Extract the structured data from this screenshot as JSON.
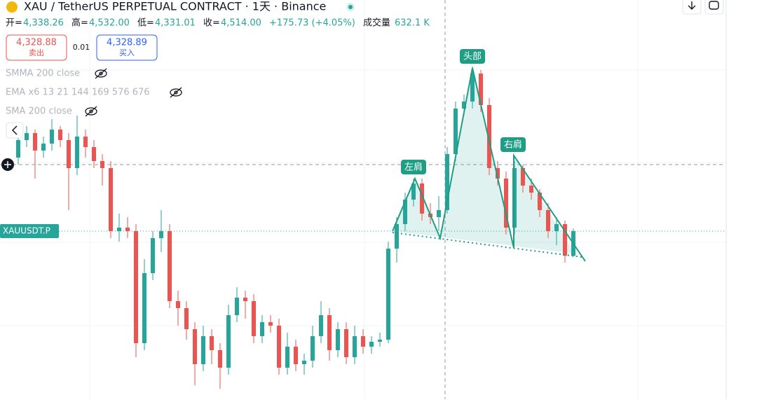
{
  "header": {
    "symbol": "XAU / TetherUS PERPETUAL CONTRACT · 1天 · Binance"
  },
  "ohlc": {
    "open_label": "开=",
    "open": "4,338.26",
    "high_label": "高=",
    "high": "4,532.00",
    "low_label": "低=",
    "low": "4,331.01",
    "close_label": "收=",
    "close": "4,514.00",
    "change": "+175.73 (+4.05%)",
    "volume_label": "成交量",
    "volume": "632.1 K"
  },
  "trade": {
    "sell_price": "4,328.88",
    "sell_label": "卖出",
    "spread": "0.01",
    "buy_price": "4,328.89",
    "buy_label": "买入"
  },
  "indicators": [
    "SMMA 200 close",
    "EMA x6 13 21 144 169 576 676",
    "SMA 200 close"
  ],
  "chart_data": {
    "type": "candlestick",
    "symbol_label": "XAUUSDT.P",
    "annotations": [
      "左肩",
      "头部",
      "右肩"
    ],
    "up_color": "#26a69a",
    "down_color": "#ef5350",
    "candles": [
      [
        5039,
        5214,
        4989,
        5164
      ],
      [
        5164,
        5264,
        5114,
        5214
      ],
      [
        5214,
        5239,
        4889,
        5089
      ],
      [
        5089,
        5189,
        5039,
        5139
      ],
      [
        5139,
        5314,
        5089,
        5239
      ],
      [
        5239,
        5264,
        5114,
        5164
      ],
      [
        5164,
        5214,
        4664,
        4964
      ],
      [
        4964,
        5339,
        4914,
        5189
      ],
      [
        5189,
        5239,
        5039,
        5114
      ],
      [
        5114,
        5164,
        4964,
        5014
      ],
      [
        5014,
        5064,
        4839,
        4964
      ],
      [
        4964,
        5014,
        4464,
        4514
      ],
      [
        4514,
        4639,
        4439,
        4539
      ],
      [
        4539,
        4614,
        4464,
        4514
      ],
      [
        4514,
        4564,
        3614,
        3714
      ],
      [
        3714,
        4314,
        3664,
        4214
      ],
      [
        4214,
        4514,
        4164,
        4464
      ],
      [
        4464,
        4664,
        4364,
        4514
      ],
      [
        4514,
        4564,
        3964,
        4014
      ],
      [
        4014,
        4089,
        3839,
        3964
      ],
      [
        3964,
        4014,
        3739,
        3814
      ],
      [
        3814,
        3864,
        3414,
        3564
      ],
      [
        3564,
        3839,
        3514,
        3764
      ],
      [
        3764,
        3814,
        3564,
        3664
      ],
      [
        3664,
        3714,
        3389,
        3539
      ],
      [
        3539,
        3989,
        3489,
        3914
      ],
      [
        3914,
        4114,
        3864,
        4039
      ],
      [
        4039,
        4089,
        3889,
        4014
      ],
      [
        4014,
        4064,
        3714,
        3764
      ],
      [
        3764,
        3914,
        3714,
        3864
      ],
      [
        3864,
        3914,
        3789,
        3839
      ],
      [
        3839,
        3889,
        3489,
        3539
      ],
      [
        3539,
        3789,
        3489,
        3689
      ],
      [
        3689,
        3739,
        3514,
        3564
      ],
      [
        3564,
        3639,
        3489,
        3589
      ],
      [
        3589,
        3839,
        3539,
        3764
      ],
      [
        3764,
        4014,
        3714,
        3914
      ],
      [
        3914,
        3964,
        3589,
        3664
      ],
      [
        3664,
        3864,
        3614,
        3814
      ],
      [
        3814,
        3864,
        3564,
        3614
      ],
      [
        3614,
        3839,
        3564,
        3764
      ],
      [
        3764,
        3814,
        3639,
        3689
      ],
      [
        3689,
        3764,
        3639,
        3724
      ],
      [
        3724,
        3789,
        3689,
        3739
      ],
      [
        3739,
        4439,
        3714,
        4389
      ],
      [
        4389,
        4614,
        4289,
        4564
      ],
      [
        4564,
        4789,
        4514,
        4739
      ],
      [
        4739,
        4889,
        4689,
        4854
      ],
      [
        4854,
        4889,
        4589,
        4639
      ],
      [
        4639,
        4714,
        4564,
        4614
      ],
      [
        4614,
        4764,
        4514,
        4664
      ],
      [
        4664,
        5114,
        4639,
        5064
      ],
      [
        5064,
        5439,
        5014,
        5389
      ],
      [
        5389,
        5489,
        5339,
        5439
      ],
      [
        5439,
        5689,
        5389,
        5639
      ],
      [
        5639,
        5664,
        5364,
        5414
      ],
      [
        5414,
        5464,
        4914,
        4964
      ],
      [
        4964,
        5014,
        4839,
        4889
      ],
      [
        4889,
        4939,
        4489,
        4539
      ],
      [
        4539,
        5014,
        4489,
        4964
      ],
      [
        4964,
        4989,
        4789,
        4839
      ],
      [
        4839,
        4889,
        4739,
        4789
      ],
      [
        4789,
        4814,
        4614,
        4664
      ],
      [
        4664,
        4714,
        4464,
        4514
      ],
      [
        4514,
        4614,
        4414,
        4564
      ],
      [
        4564,
        4589,
        4289,
        4338
      ],
      [
        4338,
        4532,
        4331,
        4514
      ]
    ]
  }
}
